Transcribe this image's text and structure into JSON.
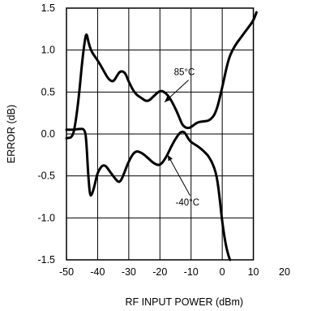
{
  "chart_data": {
    "type": "line",
    "title": "",
    "xlabel": "RF INPUT POWER (dBm)",
    "ylabel": "ERROR (dB)",
    "xlim": [
      -50,
      20
    ],
    "ylim": [
      -1.5,
      1.5
    ],
    "x_ticks": [
      "-50",
      "-40",
      "-30",
      "-20",
      "-10",
      "0",
      "10",
      "20"
    ],
    "y_ticks": [
      "1.5",
      "1.0",
      "0.5",
      "0.0",
      "-0.5",
      "-1.0",
      "-1.5"
    ],
    "grid": true,
    "series": [
      {
        "name": "85°C",
        "x": [
          -50,
          -48,
          -47,
          -46,
          -45,
          -44,
          -43.5,
          -43,
          -42,
          -40,
          -38,
          -36.5,
          -35,
          -34,
          -33,
          -32,
          -31,
          -30,
          -28,
          -26,
          -24,
          -22,
          -20,
          -18.5,
          -17,
          -15.5,
          -14,
          -13,
          -12,
          -11,
          -10,
          -8,
          -6,
          -4,
          -2,
          0,
          2,
          4,
          6,
          8,
          10,
          11
        ],
        "y": [
          -0.05,
          -0.04,
          0.15,
          0.45,
          0.85,
          1.15,
          1.2,
          1.1,
          0.98,
          0.88,
          0.75,
          0.65,
          0.62,
          0.68,
          0.74,
          0.75,
          0.72,
          0.62,
          0.48,
          0.43,
          0.38,
          0.45,
          0.52,
          0.5,
          0.44,
          0.34,
          0.22,
          0.12,
          0.08,
          0.07,
          0.08,
          0.14,
          0.15,
          0.16,
          0.25,
          0.55,
          0.9,
          1.05,
          1.15,
          1.25,
          1.35,
          1.45
        ]
      },
      {
        "name": "-40°C",
        "x": [
          -50,
          -48,
          -46,
          -44,
          -43.5,
          -43,
          -42.5,
          -42,
          -41,
          -40,
          -38,
          -36,
          -34,
          -33,
          -32,
          -30,
          -28,
          -26,
          -24,
          -22,
          -20,
          -18,
          -16,
          -14,
          -13,
          -12,
          -11,
          -10,
          -8,
          -6,
          -4,
          -2,
          -1,
          0,
          1,
          2,
          2.5
        ],
        "y": [
          0.05,
          0.05,
          0.06,
          0.06,
          -0.15,
          -0.5,
          -0.72,
          -0.74,
          -0.62,
          -0.45,
          -0.35,
          -0.45,
          -0.55,
          -0.58,
          -0.52,
          -0.32,
          -0.2,
          -0.22,
          -0.28,
          -0.35,
          -0.38,
          -0.28,
          -0.12,
          0.0,
          0.03,
          0.02,
          -0.05,
          -0.1,
          -0.14,
          -0.2,
          -0.28,
          -0.45,
          -0.7,
          -1.05,
          -1.3,
          -1.45,
          -1.5
        ]
      }
    ],
    "annotations": [
      {
        "text": "85°C",
        "x": -15.5,
        "y": 0.7,
        "arrow_to": [
          -18.5,
          0.38
        ]
      },
      {
        "text": "-40°C",
        "x": -15,
        "y": -0.85,
        "arrow_to": [
          -17.5,
          -0.25
        ]
      }
    ]
  }
}
